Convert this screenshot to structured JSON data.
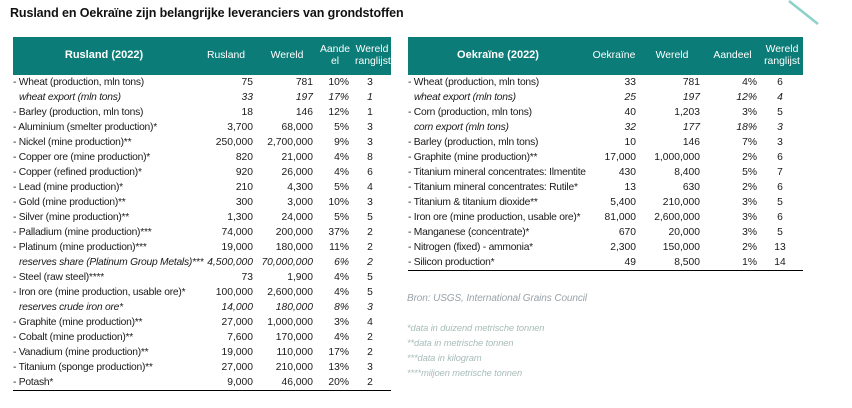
{
  "title": "Rusland en Oekraïne zijn belangrijke leveranciers van grondstoffen",
  "source": "Bron: USGS, International Grains Council",
  "footnotes": [
    "*data in duizend metrische tonnen",
    "**data in metrische tonnen",
    "***data in kilogram",
    "****miljoen metrische tonnen"
  ],
  "colors": {
    "header_bg": "#0b7c77",
    "header_text": "#ffffff",
    "accent_line": "#8ed1c8",
    "source_text": "#9aa3a9",
    "table_border": "#000000"
  },
  "chart_data": [
    {
      "type": "table",
      "title": "Rusland (2022)",
      "columns": [
        "Rusland",
        "Wereld",
        "Aandeel",
        "Wereld ranglijst"
      ],
      "rows": [
        {
          "label": "- Wheat (production, mln tons)",
          "italic": false,
          "values": [
            "75",
            "781",
            "10%",
            "3"
          ]
        },
        {
          "label": "wheat export (mln tons)",
          "italic": true,
          "values": [
            "33",
            "197",
            "17%",
            "1"
          ]
        },
        {
          "label": "- Barley (production, mln tons)",
          "italic": false,
          "values": [
            "18",
            "146",
            "12%",
            "1"
          ]
        },
        {
          "label": "- Aluminium (smelter production)*",
          "italic": false,
          "values": [
            "3,700",
            "68,000",
            "5%",
            "3"
          ]
        },
        {
          "label": "- Nickel (mine production)**",
          "italic": false,
          "values": [
            "250,000",
            "2,700,000",
            "9%",
            "3"
          ]
        },
        {
          "label": "- Copper ore (mine production)*",
          "italic": false,
          "values": [
            "820",
            "21,000",
            "4%",
            "8"
          ]
        },
        {
          "label": "- Copper (refined production)*",
          "italic": false,
          "values": [
            "920",
            "26,000",
            "4%",
            "6"
          ]
        },
        {
          "label": "- Lead (mine production)*",
          "italic": false,
          "values": [
            "210",
            "4,300",
            "5%",
            "4"
          ]
        },
        {
          "label": "- Gold (mine production)**",
          "italic": false,
          "values": [
            "300",
            "3,000",
            "10%",
            "3"
          ]
        },
        {
          "label": "- Silver (mine production)**",
          "italic": false,
          "values": [
            "1,300",
            "24,000",
            "5%",
            "5"
          ]
        },
        {
          "label": "- Palladium (mine production)***",
          "italic": false,
          "values": [
            "74,000",
            "200,000",
            "37%",
            "2"
          ]
        },
        {
          "label": "- Platinum (mine production)***",
          "italic": false,
          "values": [
            "19,000",
            "180,000",
            "11%",
            "2"
          ]
        },
        {
          "label": "reserves share (Platinum Group Metals)***",
          "italic": true,
          "values": [
            "4,500,000",
            "70,000,000",
            "6%",
            "2"
          ]
        },
        {
          "label": "- Steel (raw steel)****",
          "italic": false,
          "values": [
            "73",
            "1,900",
            "4%",
            "5"
          ]
        },
        {
          "label": "- Iron ore (mine production, usable ore)*",
          "italic": false,
          "values": [
            "100,000",
            "2,600,000",
            "4%",
            "5"
          ]
        },
        {
          "label": "reserves crude iron ore*",
          "italic": true,
          "values": [
            "14,000",
            "180,000",
            "8%",
            "3"
          ]
        },
        {
          "label": "- Graphite (mine production)**",
          "italic": false,
          "values": [
            "27,000",
            "1,000,000",
            "3%",
            "4"
          ]
        },
        {
          "label": "- Cobalt (mine production)**",
          "italic": false,
          "values": [
            "7,600",
            "170,000",
            "4%",
            "2"
          ]
        },
        {
          "label": "- Vanadium (mine production)**",
          "italic": false,
          "values": [
            "19,000",
            "110,000",
            "17%",
            "2"
          ]
        },
        {
          "label": "- Titanium (sponge production)**",
          "italic": false,
          "values": [
            "27,000",
            "210,000",
            "13%",
            "3"
          ]
        },
        {
          "label": "- Potash*",
          "italic": false,
          "values": [
            "9,000",
            "46,000",
            "20%",
            "2"
          ]
        }
      ]
    },
    {
      "type": "table",
      "title": "Oekraïne (2022)",
      "columns": [
        "Oekraïne",
        "Wereld",
        "Aandeel",
        "Wereld ranglijst"
      ],
      "rows": [
        {
          "label": "- Wheat (production, mln tons)",
          "italic": false,
          "values": [
            "33",
            "781",
            "4%",
            "6"
          ]
        },
        {
          "label": "wheat export (mln tons)",
          "italic": true,
          "values": [
            "25",
            "197",
            "12%",
            "4"
          ]
        },
        {
          "label": "- Corn (production, mln tons)",
          "italic": false,
          "values": [
            "40",
            "1,203",
            "3%",
            "5"
          ]
        },
        {
          "label": "corn export (mln tons)",
          "italic": true,
          "values": [
            "32",
            "177",
            "18%",
            "3"
          ]
        },
        {
          "label": "- Barley (production, mln tons)",
          "italic": false,
          "values": [
            "10",
            "146",
            "7%",
            "3"
          ]
        },
        {
          "label": "- Graphite (mine production)**",
          "italic": false,
          "values": [
            "17,000",
            "1,000,000",
            "2%",
            "6"
          ]
        },
        {
          "label": "- Titanium mineral concentrates: Ilmentite",
          "italic": false,
          "values": [
            "430",
            "8,400",
            "5%",
            "7"
          ]
        },
        {
          "label": "- Titanium mineral concentrates: Rutile*",
          "italic": false,
          "values": [
            "13",
            "630",
            "2%",
            "6"
          ]
        },
        {
          "label": "- Titanium & titanium dioxide**",
          "italic": false,
          "values": [
            "5,400",
            "210,000",
            "3%",
            "5"
          ]
        },
        {
          "label": "- Iron ore (mine production, usable ore)*",
          "italic": false,
          "values": [
            "81,000",
            "2,600,000",
            "3%",
            "6"
          ]
        },
        {
          "label": "- Manganese (concentrate)*",
          "italic": false,
          "values": [
            "670",
            "20,000",
            "3%",
            "5"
          ]
        },
        {
          "label": "- Nitrogen (fixed) - ammonia*",
          "italic": false,
          "values": [
            "2,300",
            "150,000",
            "2%",
            "13"
          ]
        },
        {
          "label": "- Silicon production*",
          "italic": false,
          "values": [
            "49",
            "8,500",
            "1%",
            "14"
          ]
        }
      ]
    }
  ]
}
